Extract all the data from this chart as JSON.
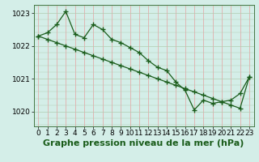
{
  "background_color": "#d4eee8",
  "grid_color_v": "#e8a0a0",
  "grid_color_h": "#b0ccb0",
  "line_color": "#1a5c1a",
  "title": "Graphe pression niveau de la mer (hPa)",
  "ylim": [
    1019.55,
    1023.25
  ],
  "xlim": [
    -0.5,
    23.5
  ],
  "yticks": [
    1020,
    1021,
    1022,
    1023
  ],
  "xticks": [
    0,
    1,
    2,
    3,
    4,
    5,
    6,
    7,
    8,
    9,
    10,
    11,
    12,
    13,
    14,
    15,
    16,
    17,
    18,
    19,
    20,
    21,
    22,
    23
  ],
  "series1_x": [
    0,
    1,
    2,
    3,
    4,
    5,
    6,
    7,
    8,
    9,
    10,
    11,
    12,
    13,
    14,
    15,
    16,
    17,
    18,
    19,
    20,
    21,
    22,
    23
  ],
  "series1_y": [
    1022.3,
    1022.4,
    1022.65,
    1023.05,
    1022.35,
    1022.25,
    1022.65,
    1022.5,
    1022.2,
    1022.1,
    1021.95,
    1021.8,
    1021.55,
    1021.35,
    1021.25,
    1020.9,
    1020.65,
    1020.05,
    1020.35,
    1020.25,
    1020.3,
    1020.35,
    1020.55,
    1021.05
  ],
  "series2_x": [
    0,
    1,
    2,
    3,
    4,
    5,
    6,
    7,
    8,
    9,
    10,
    11,
    12,
    13,
    14,
    15,
    16,
    17,
    18,
    19,
    20,
    21,
    22,
    23
  ],
  "series2_y": [
    1022.3,
    1022.2,
    1022.1,
    1022.0,
    1021.9,
    1021.8,
    1021.7,
    1021.6,
    1021.5,
    1021.4,
    1021.3,
    1021.2,
    1021.1,
    1021.0,
    1020.9,
    1020.8,
    1020.7,
    1020.6,
    1020.5,
    1020.4,
    1020.3,
    1020.2,
    1020.1,
    1021.05
  ],
  "title_fontsize": 8,
  "tick_fontsize": 6.5
}
